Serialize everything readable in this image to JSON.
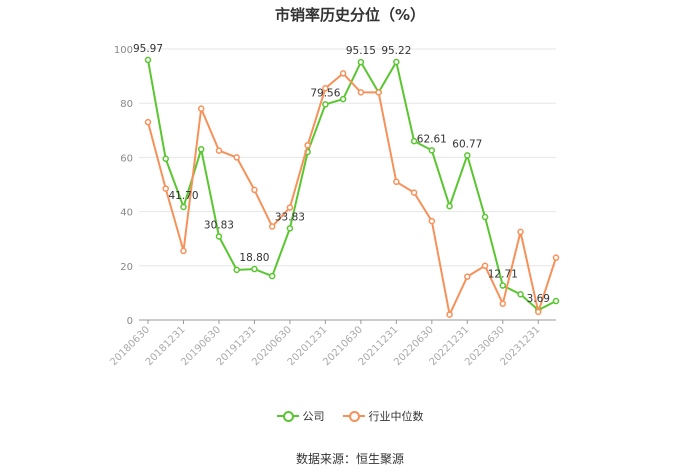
{
  "chart_data": {
    "type": "line",
    "title": "市销率历史分位（%）",
    "categories": [
      "20180630",
      "20181231",
      "20190630",
      "20191231",
      "20200630",
      "20201231",
      "20210630",
      "20211231",
      "20220630",
      "20221231",
      "20230630",
      "20231231"
    ],
    "x": [
      "20180630",
      "20180930",
      "20181231",
      "20190331",
      "20190630",
      "20190930",
      "20191231",
      "20200331",
      "20200630",
      "20200930",
      "20201231",
      "20210331",
      "20210630",
      "20210930",
      "20211231",
      "20220331",
      "20220630",
      "20220930",
      "20221231",
      "20230331",
      "20230630",
      "20230930",
      "20231231",
      "20240331"
    ],
    "ylim": [
      0,
      100
    ],
    "yticks": [
      0,
      20,
      40,
      60,
      80,
      100
    ],
    "series": [
      {
        "name": "公司",
        "color": "#5ac630",
        "values": [
          95.97,
          59.5,
          41.7,
          63.0,
          30.83,
          18.5,
          18.8,
          16.2,
          33.83,
          62.0,
          79.56,
          81.5,
          95.15,
          84.0,
          95.22,
          66.0,
          62.61,
          42.0,
          60.77,
          38.0,
          12.71,
          9.5,
          3.69,
          7.0
        ]
      },
      {
        "name": "行业中位数",
        "color": "#f7915a",
        "values": [
          73.0,
          48.5,
          25.5,
          78.0,
          62.5,
          60.0,
          48.0,
          34.5,
          41.5,
          64.5,
          85.5,
          91.0,
          84.0,
          84.0,
          51.0,
          47.0,
          36.5,
          2.0,
          16.0,
          20.0,
          6.0,
          32.5,
          3.0,
          23.0
        ]
      }
    ],
    "data_labels": [
      {
        "series": 0,
        "index": 0,
        "text": "95.97"
      },
      {
        "series": 0,
        "index": 2,
        "text": "41.70"
      },
      {
        "series": 0,
        "index": 4,
        "text": "30.83"
      },
      {
        "series": 0,
        "index": 6,
        "text": "18.80"
      },
      {
        "series": 0,
        "index": 8,
        "text": "33.83"
      },
      {
        "series": 0,
        "index": 10,
        "text": "79.56"
      },
      {
        "series": 0,
        "index": 12,
        "text": "95.15"
      },
      {
        "series": 0,
        "index": 14,
        "text": "95.22"
      },
      {
        "series": 0,
        "index": 16,
        "text": "62.61"
      },
      {
        "series": 0,
        "index": 18,
        "text": "60.77"
      },
      {
        "series": 0,
        "index": 20,
        "text": "12.71"
      },
      {
        "series": 0,
        "index": 22,
        "text": "3.69"
      }
    ],
    "grid": true,
    "legend_position": "bottom"
  },
  "source": "数据来源：恒生聚源"
}
